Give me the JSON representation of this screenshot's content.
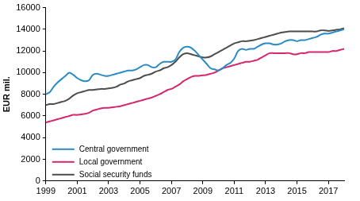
{
  "chart_data": {
    "type": "line",
    "y_label": "EUR mil.",
    "categories": [
      "1999",
      null,
      null,
      null,
      null,
      null,
      null,
      null,
      "2001",
      null,
      null,
      null,
      null,
      null,
      null,
      null,
      "2003",
      null,
      null,
      null,
      null,
      null,
      null,
      null,
      "2005",
      null,
      null,
      null,
      null,
      null,
      null,
      null,
      "2007",
      null,
      null,
      null,
      null,
      null,
      null,
      null,
      "2009",
      null,
      null,
      null,
      null,
      null,
      null,
      null,
      "2011",
      null,
      null,
      null,
      null,
      null,
      null,
      null,
      "2013",
      null,
      null,
      null,
      null,
      null,
      null,
      null,
      "2015",
      null,
      null,
      null,
      null,
      null,
      null,
      null,
      "2017",
      null,
      null,
      null,
      null
    ],
    "series": [
      {
        "name": "Central government",
        "color": "#2a8bc4",
        "values": [
          8000,
          8200,
          8700,
          9100,
          9400,
          9700,
          10000,
          9800,
          9500,
          9300,
          9200,
          9300,
          9800,
          9900,
          9800,
          9700,
          9700,
          9800,
          9900,
          10000,
          10100,
          10200,
          10200,
          10300,
          10500,
          10700,
          10700,
          10500,
          10500,
          10800,
          11000,
          11000,
          11000,
          11200,
          11900,
          12300,
          12400,
          12300,
          12000,
          11600,
          11200,
          10800,
          10400,
          10300,
          10200,
          10400,
          10700,
          10900,
          11300,
          12000,
          12200,
          12100,
          12200,
          12200,
          12400,
          12600,
          12700,
          12700,
          12600,
          12600,
          12700,
          12900,
          13000,
          13000,
          12900,
          13000,
          13000,
          13100,
          13200,
          13300,
          13500,
          13600,
          13600,
          13700,
          13800,
          13900,
          14000
        ]
      },
      {
        "name": "Local government",
        "color": "#d6266e",
        "values": [
          5400,
          5500,
          5600,
          5700,
          5800,
          5900,
          6000,
          6100,
          6100,
          6150,
          6200,
          6300,
          6500,
          6600,
          6700,
          6750,
          6750,
          6800,
          6850,
          6900,
          7000,
          7100,
          7200,
          7300,
          7400,
          7500,
          7600,
          7700,
          7850,
          8000,
          8200,
          8400,
          8500,
          8700,
          8900,
          9200,
          9400,
          9600,
          9700,
          9700,
          9750,
          9800,
          9900,
          10000,
          10200,
          10400,
          10500,
          10600,
          10700,
          10800,
          10900,
          11000,
          11000,
          11100,
          11200,
          11400,
          11600,
          11800,
          11800,
          11800,
          11800,
          11800,
          11800,
          11700,
          11700,
          11800,
          11800,
          11900,
          11900,
          11900,
          11900,
          11900,
          11900,
          12000,
          12000,
          12100,
          12200
        ]
      },
      {
        "name": "Social security funds",
        "color": "#4d4d4d",
        "values": [
          7000,
          7100,
          7100,
          7200,
          7300,
          7400,
          7600,
          7900,
          8100,
          8200,
          8300,
          8400,
          8400,
          8450,
          8500,
          8500,
          8550,
          8600,
          8700,
          8900,
          9000,
          9200,
          9300,
          9400,
          9500,
          9700,
          9800,
          9900,
          10100,
          10200,
          10400,
          10500,
          10700,
          11000,
          11400,
          11700,
          11800,
          11700,
          11600,
          11500,
          11400,
          11400,
          11500,
          11700,
          11900,
          12100,
          12300,
          12500,
          12700,
          12800,
          12900,
          12900,
          12950,
          13000,
          13100,
          13200,
          13300,
          13400,
          13500,
          13600,
          13700,
          13750,
          13800,
          13800,
          13800,
          13800,
          13800,
          13800,
          13800,
          13800,
          13900,
          13900,
          13850,
          13900,
          13950,
          14000,
          14100
        ]
      }
    ],
    "ylim": [
      0,
      16000
    ],
    "yticks": [
      0,
      2000,
      4000,
      6000,
      8000,
      10000,
      12000,
      14000,
      16000
    ],
    "grid": false,
    "legend": "lower left"
  }
}
